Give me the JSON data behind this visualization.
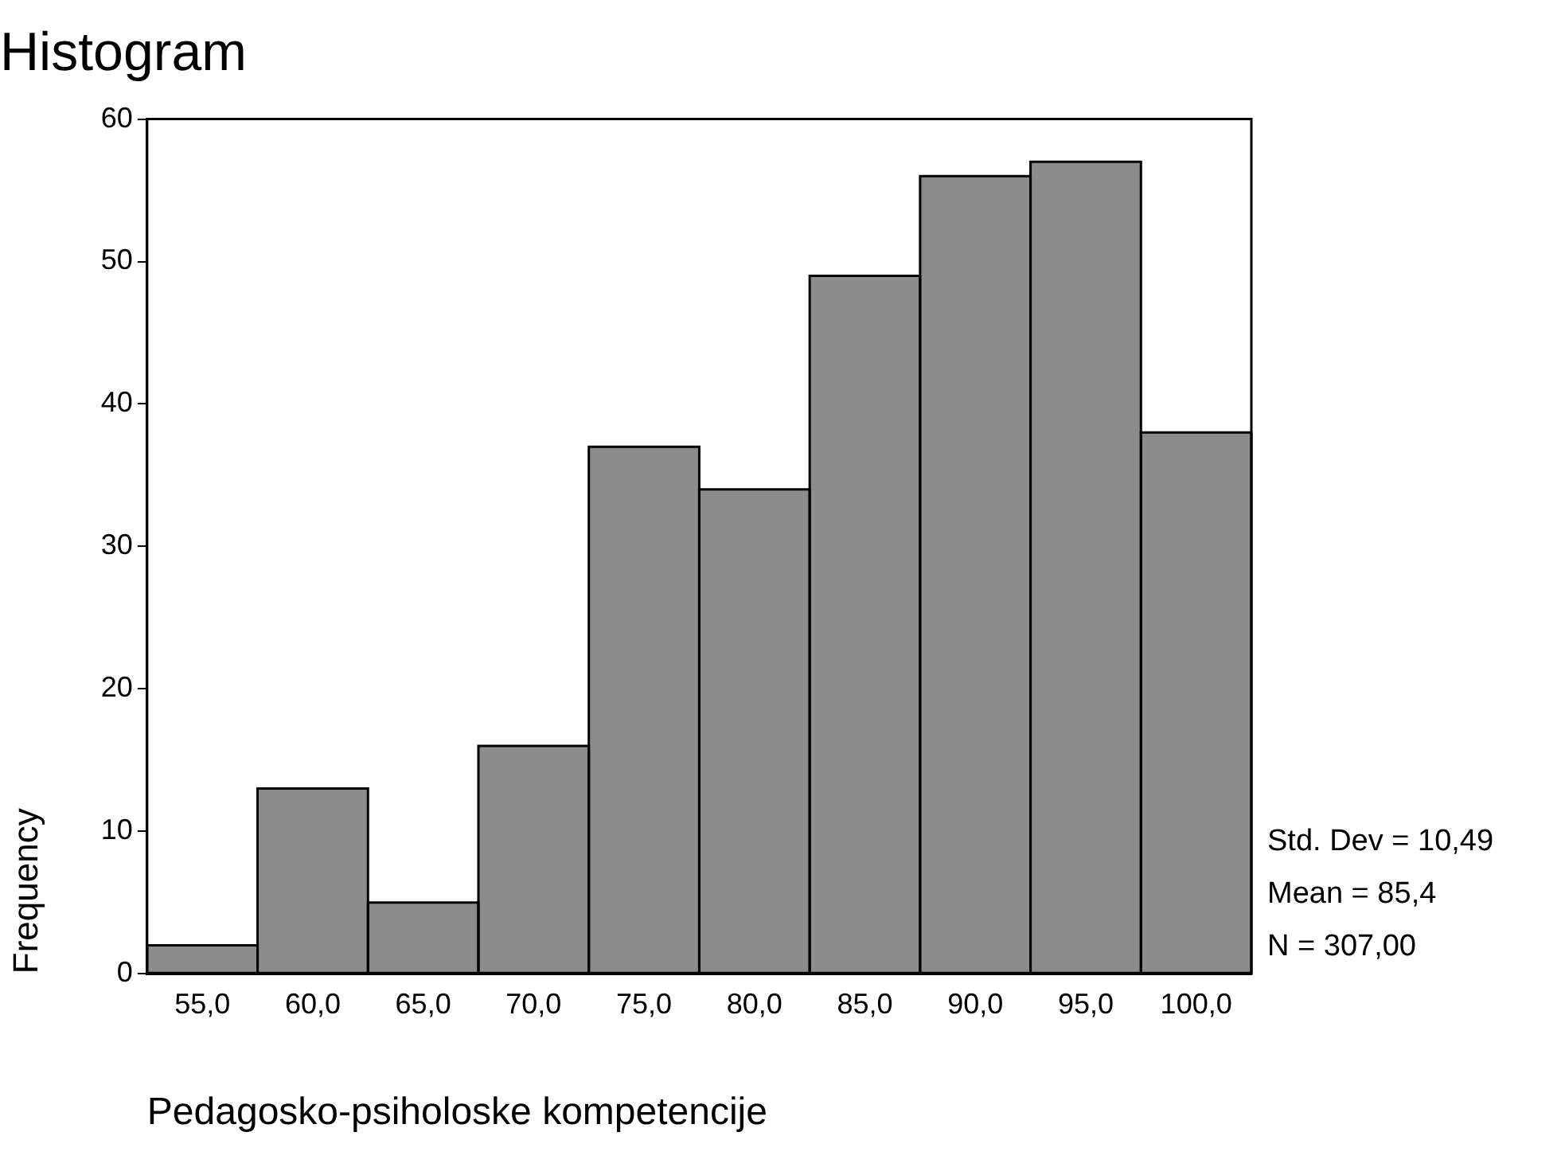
{
  "chart_data": {
    "type": "histogram",
    "title": "Histogram",
    "xlabel": "Pedagosko-psiholoske kompetencije",
    "ylabel": "Frequency",
    "bins": [
      52.5,
      57.5,
      62.5,
      67.5,
      72.5,
      77.5,
      82.5,
      87.5,
      92.5,
      97.5,
      102.5
    ],
    "values": [
      2,
      13,
      5,
      16,
      37,
      34,
      49,
      56,
      57,
      38
    ],
    "color": "#8c8c8c",
    "xlim": [
      52.5,
      102.5
    ],
    "xticks": [
      {
        "value": 55,
        "label": "55,0"
      },
      {
        "value": 60,
        "label": "60,0"
      },
      {
        "value": 65,
        "label": "65,0"
      },
      {
        "value": 70,
        "label": "70,0"
      },
      {
        "value": 75,
        "label": "75,0"
      },
      {
        "value": 80,
        "label": "80,0"
      },
      {
        "value": 85,
        "label": "85,0"
      },
      {
        "value": 90,
        "label": "90,0"
      },
      {
        "value": 95,
        "label": "95,0"
      },
      {
        "value": 100,
        "label": "100,0"
      }
    ],
    "ylim": [
      0,
      60
    ],
    "yticks": [
      0,
      10,
      20,
      30,
      40,
      50,
      60
    ],
    "annotations": [
      "Std. Dev = 10,49",
      "Mean = 85,4",
      "N = 307,00"
    ],
    "grid": false,
    "legend": false
  }
}
